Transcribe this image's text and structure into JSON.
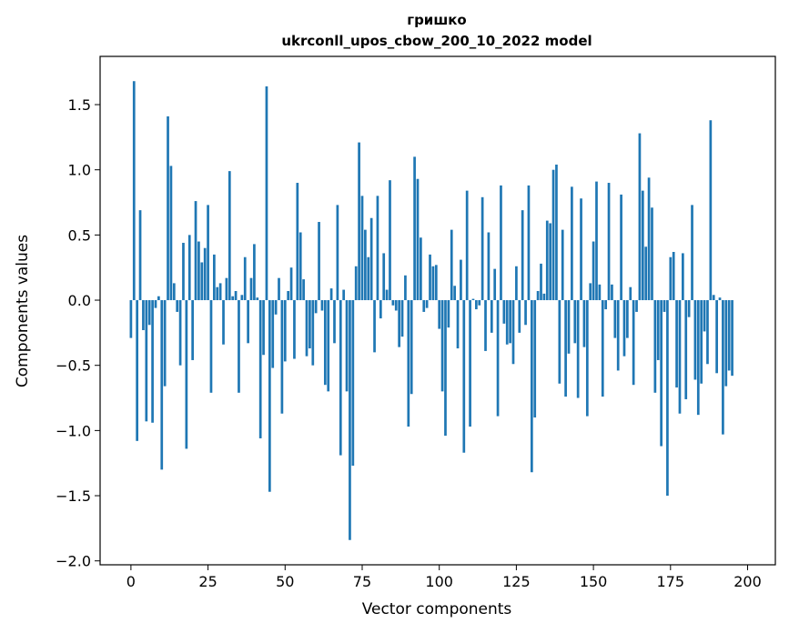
{
  "chart_data": {
    "type": "bar",
    "title": "гришко",
    "subtitle": "ukrconll_upos_cbow_200_10_2022 model",
    "xlabel": "Vector components",
    "ylabel": "Components values",
    "xlim": [
      -10,
      209
    ],
    "ylim": [
      -2.03,
      1.87
    ],
    "xticks": [
      0,
      25,
      50,
      75,
      100,
      125,
      150,
      175,
      200
    ],
    "yticks": [
      -2.0,
      -1.5,
      -1.0,
      -0.5,
      0.0,
      0.5,
      1.0,
      1.5
    ],
    "ytick_labels": [
      "−2.0",
      "−1.5",
      "−1.0",
      "−0.5",
      "0.0",
      "0.5",
      "1.0",
      "1.5"
    ],
    "bar_color": "#1f77b4",
    "grid": false,
    "values": [
      -0.29,
      1.68,
      -1.08,
      0.69,
      -0.23,
      -0.93,
      -0.19,
      -0.94,
      -0.06,
      0.03,
      -1.3,
      -0.66,
      1.41,
      1.03,
      0.13,
      -0.09,
      -0.5,
      0.44,
      -1.14,
      0.5,
      -0.46,
      0.76,
      0.45,
      0.29,
      0.4,
      0.73,
      -0.71,
      0.35,
      0.1,
      0.13,
      -0.34,
      0.17,
      0.99,
      0.03,
      0.07,
      -0.71,
      0.04,
      0.33,
      -0.33,
      0.17,
      0.43,
      0.02,
      -1.06,
      -0.42,
      1.64,
      -1.47,
      -0.52,
      -0.11,
      0.17,
      -0.87,
      -0.47,
      0.07,
      0.25,
      -0.45,
      0.9,
      0.52,
      0.16,
      -0.43,
      -0.37,
      -0.5,
      -0.1,
      0.6,
      -0.08,
      -0.65,
      -0.7,
      0.09,
      -0.33,
      0.73,
      -1.19,
      0.08,
      -0.7,
      -1.84,
      -1.27,
      0.26,
      1.21,
      0.8,
      0.54,
      0.33,
      0.63,
      -0.4,
      0.8,
      -0.14,
      0.36,
      0.08,
      0.92,
      -0.04,
      -0.08,
      -0.36,
      -0.28,
      0.19,
      -0.97,
      -0.72,
      1.1,
      0.93,
      0.48,
      -0.09,
      -0.06,
      0.35,
      0.26,
      0.27,
      -0.22,
      -0.7,
      -1.04,
      -0.21,
      0.54,
      0.11,
      -0.37,
      0.31,
      -1.17,
      0.84,
      -0.97,
      0.01,
      -0.07,
      -0.04,
      0.79,
      -0.39,
      0.52,
      -0.25,
      0.24,
      -0.89,
      0.88,
      -0.18,
      -0.34,
      -0.33,
      -0.49,
      0.26,
      -0.25,
      0.69,
      -0.19,
      0.88,
      -1.32,
      -0.9,
      0.07,
      0.28,
      0.05,
      0.61,
      0.59,
      1.0,
      1.04,
      -0.64,
      0.54,
      -0.74,
      -0.41,
      0.87,
      -0.33,
      -0.75,
      0.78,
      -0.36,
      -0.89,
      0.13,
      0.45,
      0.91,
      0.12,
      -0.74,
      -0.07,
      0.9,
      0.12,
      -0.29,
      -0.54,
      0.81,
      -0.43,
      -0.29,
      0.1,
      -0.65,
      -0.09,
      1.28,
      0.84,
      0.41,
      0.94,
      0.71,
      -0.71,
      -0.46,
      -1.12,
      -0.09,
      -1.5,
      0.33,
      0.37,
      -0.67,
      -0.87,
      0.36,
      -0.76,
      -0.13,
      0.73,
      -0.61,
      -0.88,
      -0.64,
      -0.24,
      -0.49,
      1.38,
      0.04,
      -0.56,
      0.02,
      -1.03,
      -0.66,
      -0.54,
      -0.58,
      0.0,
      0.0,
      0.0,
      0.0
    ]
  }
}
